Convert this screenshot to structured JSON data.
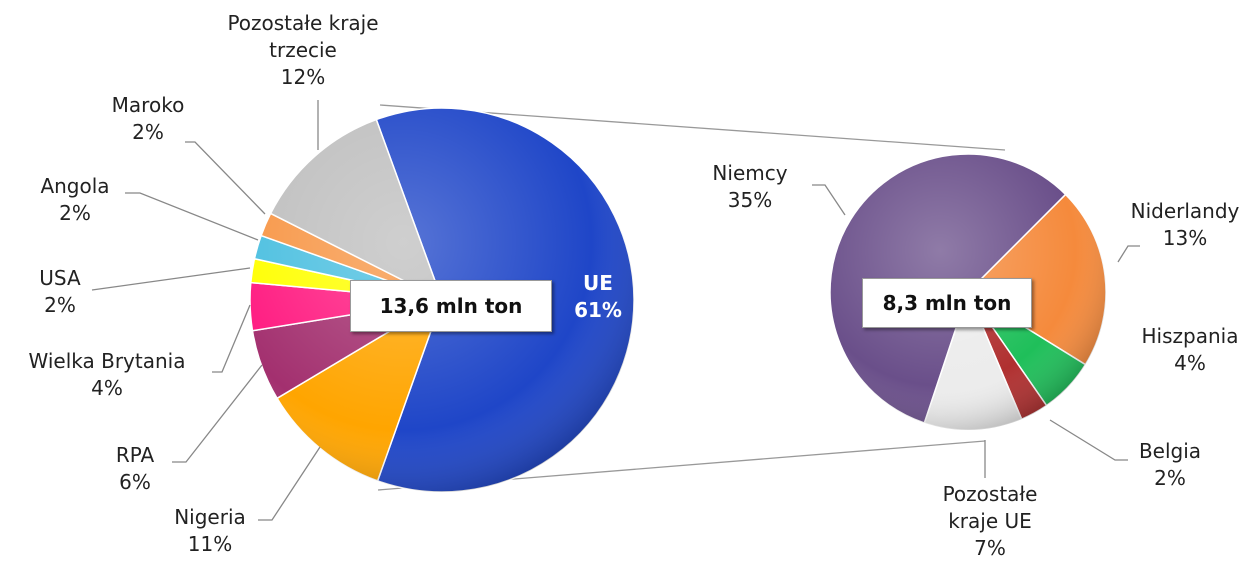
{
  "chart_data": [
    {
      "type": "pie",
      "annotation": "13,6 mln ton",
      "categories": [
        "UE",
        "Nigeria",
        "RPA",
        "Wielka Brytania",
        "USA",
        "Angola",
        "Maroko",
        "Pozostałe kraje trzecie"
      ],
      "values": [
        61,
        11,
        6,
        4,
        2,
        2,
        2,
        12
      ],
      "value_labels": [
        "61%",
        "11%",
        "6%",
        "4%",
        "2%",
        "2%",
        "2%",
        "12%"
      ],
      "colors": [
        "#1f46c8",
        "#ffa500",
        "#a3306f",
        "#ff1a80",
        "#ffff00",
        "#4bbfe0",
        "#f79646",
        "#bfbfbf"
      ]
    },
    {
      "type": "pie",
      "annotation": "8,3 mln ton",
      "categories": [
        "Niderlandy",
        "Hiszpania",
        "Belgia",
        "Pozostałe kraje UE",
        "Niemcy"
      ],
      "values": [
        13,
        4,
        2,
        7,
        35
      ],
      "value_labels": [
        "13%",
        "4%",
        "2%",
        "7%",
        "35%"
      ],
      "colors": [
        "#f58a3c",
        "#1fbf5a",
        "#b03030",
        "#ececec",
        "#6a4f8a"
      ]
    }
  ]
}
